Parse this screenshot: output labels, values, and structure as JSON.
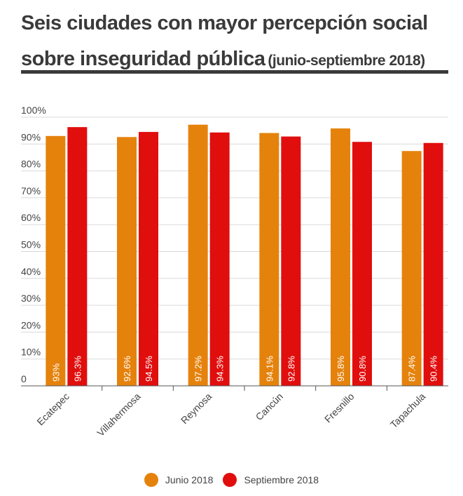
{
  "title": {
    "main": "Seis ciudades con mayor percepción social sobre inseguridad pública",
    "sub": "(junio-septiembre 2018)"
  },
  "colors": {
    "junio": "#E5820C",
    "septiembre": "#E10E0E",
    "grid": "#d9d9d9",
    "rule": "#3a3a3a"
  },
  "chart_data": {
    "type": "bar",
    "categories": [
      "Ecatepec",
      "Villahermosa",
      "Reynosa",
      "Cancún",
      "Fresnillo",
      "Tapachula"
    ],
    "series": [
      {
        "name": "Junio 2018",
        "values": [
          93,
          92.6,
          97.2,
          94.1,
          95.8,
          87.4
        ],
        "labels": [
          "93%",
          "92.6%",
          "97.2%",
          "94.1%",
          "95.8%",
          "87.4%"
        ]
      },
      {
        "name": "Septiembre 2018",
        "values": [
          96.3,
          94.5,
          94.3,
          92.8,
          90.8,
          90.4
        ],
        "labels": [
          "96.3%",
          "94.5%",
          "94.3%",
          "92.8%",
          "90.8%",
          "90.4%"
        ]
      }
    ],
    "ylim": [
      0,
      100
    ],
    "yticks": [
      "0",
      "10%",
      "20%",
      "30%",
      "40%",
      "50%",
      "60%",
      "70%",
      "80%",
      "90%",
      "100%"
    ],
    "grid": true,
    "legend": "bottom-center"
  }
}
